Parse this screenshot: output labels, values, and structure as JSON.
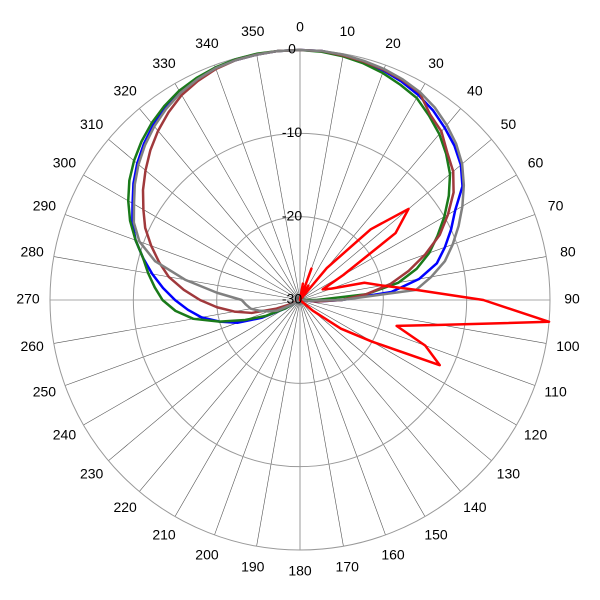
{
  "chart_data": {
    "type": "polar",
    "direction": "clockwise",
    "rlim": [
      -30,
      0
    ],
    "rticks": [
      -30,
      -20,
      -10,
      0
    ],
    "thetaticks": [
      0,
      10,
      20,
      30,
      40,
      50,
      60,
      70,
      80,
      90,
      100,
      110,
      120,
      130,
      140,
      150,
      160,
      170,
      180,
      190,
      200,
      210,
      220,
      230,
      240,
      250,
      260,
      270,
      280,
      290,
      300,
      310,
      320,
      330,
      340,
      350
    ],
    "theta": [
      0,
      5,
      10,
      15,
      20,
      25,
      30,
      35,
      40,
      45,
      50,
      55,
      60,
      65,
      70,
      75,
      80,
      85,
      90,
      95,
      100,
      105,
      110,
      115,
      120,
      125,
      130,
      135,
      140,
      145,
      150,
      155,
      160,
      165,
      170,
      175,
      180,
      185,
      190,
      195,
      200,
      205,
      210,
      215,
      220,
      225,
      230,
      235,
      240,
      245,
      250,
      255,
      260,
      265,
      270,
      275,
      280,
      285,
      290,
      295,
      300,
      305,
      310,
      315,
      320,
      325,
      330,
      335,
      340,
      345,
      350,
      355
    ],
    "grid": true,
    "series": [
      {
        "color": "#0000ff",
        "values": [
          0,
          0,
          -0.2,
          -0.4,
          -0.7,
          -1.1,
          -1.6,
          -2.2,
          -3,
          -3.8,
          -4.8,
          -6.2,
          -8.5,
          -10,
          -11.5,
          -13,
          -15.5,
          -19,
          -25,
          -28,
          -30,
          -30,
          -30,
          -30,
          -30,
          -30,
          -30,
          -30,
          -30,
          -30,
          -30,
          -30,
          -30,
          -30,
          -30,
          -30,
          -30,
          -30,
          -30,
          -30,
          -30,
          -30,
          -30,
          -30,
          -30,
          -30,
          -30,
          -30,
          -28,
          -25,
          -22,
          -20,
          -18,
          -16.5,
          -15,
          -13.5,
          -12,
          -10.5,
          -9,
          -7.8,
          -6.8,
          -5.6,
          -4.5,
          -3.5,
          -2.6,
          -1.8,
          -1.2,
          -0.7,
          -0.4,
          -0.2,
          -0.1,
          0
        ]
      },
      {
        "color": "#1a7a1a",
        "values": [
          0,
          -0.1,
          -0.3,
          -0.6,
          -1,
          -1.5,
          -2,
          -3,
          -4,
          -5.2,
          -6.5,
          -8.2,
          -10,
          -11.8,
          -13.5,
          -15.5,
          -18,
          -22,
          -28,
          -30,
          -30,
          -30,
          -30,
          -30,
          -30,
          -30,
          -30,
          -30,
          -30,
          -30,
          -30,
          -30,
          -30,
          -30,
          -30,
          -30,
          -30,
          -30,
          -30,
          -30,
          -30,
          -30,
          -30,
          -30,
          -30,
          -30,
          -30,
          -30,
          -28,
          -25.5,
          -23,
          -20,
          -17,
          -15,
          -13.5,
          -12.5,
          -11.5,
          -10.5,
          -9,
          -7.5,
          -6.2,
          -5,
          -4,
          -3.1,
          -2.3,
          -1.6,
          -1,
          -0.6,
          -0.3,
          -0.1,
          0,
          0
        ]
      },
      {
        "color": "#a0393c",
        "values": [
          0,
          0,
          -0.2,
          -0.4,
          -0.6,
          -0.9,
          -1.3,
          -2.8,
          -3.6,
          -5,
          -6,
          -7.5,
          -9.5,
          -11.5,
          -14,
          -16.5,
          -19,
          -22,
          -25,
          -28,
          -30,
          -30,
          -30,
          -30,
          -30,
          -30,
          -30,
          -30,
          -30,
          -30,
          -30,
          -30,
          -30,
          -30,
          -30,
          -30,
          -30,
          -30,
          -30,
          -30,
          -30,
          -30,
          -30,
          -30,
          -30,
          -30,
          -30,
          -30,
          -30,
          -29,
          -27,
          -24,
          -22,
          -20,
          -18,
          -16,
          -14,
          -12.5,
          -11,
          -9.5,
          -8.3,
          -7,
          -5.8,
          -4.6,
          -3.5,
          -2.5,
          -1.6,
          -1,
          -0.5,
          -0.2,
          -0.1,
          0
        ]
      },
      {
        "color": "#808080",
        "values": [
          0,
          0,
          -0.1,
          -0.3,
          -0.5,
          -0.8,
          -1.2,
          -1.8,
          -2.6,
          -3.5,
          -4.6,
          -6,
          -7.5,
          -9,
          -10.5,
          -12,
          -14,
          -16,
          -25,
          -29,
          -30,
          -30,
          -30,
          -30,
          -30,
          -30,
          -30,
          -30,
          -30,
          -30,
          -30,
          -30,
          -30,
          -30,
          -30,
          -30,
          -30,
          -30,
          -30,
          -30,
          -30,
          -30,
          -30,
          -30,
          -30,
          -30,
          -30,
          -30,
          -29,
          -27,
          -26,
          -25,
          -24,
          -23.5,
          -23,
          -20,
          -16,
          -12,
          -9.5,
          -8,
          -7,
          -5.8,
          -4.7,
          -3.7,
          -2.8,
          -2,
          -1.3,
          -0.8,
          -0.4,
          -0.2,
          -0.1,
          0
        ]
      },
      {
        "color": "#ff0000",
        "values": [
          -30,
          -30,
          -28,
          -30,
          -26,
          -30,
          -28,
          -30,
          -25,
          -18,
          -13,
          -16,
          -24,
          -27,
          -26,
          -22,
          -20,
          -16,
          -8,
          0,
          -12.8,
          -18,
          -14,
          -11.5,
          -20,
          -24,
          -28,
          -30,
          -30,
          -30,
          -30,
          -30,
          -30,
          -30,
          -30,
          -30,
          -30,
          -30,
          -30,
          -30,
          -30,
          -30,
          -30,
          -30,
          -30,
          -30,
          -30,
          -30,
          -30,
          -30,
          -30,
          -30,
          -30,
          -30,
          -30,
          -30,
          -30,
          -30,
          -30,
          -30,
          -30,
          -30,
          -30,
          -30,
          -30,
          -30,
          -30,
          -30,
          -30,
          -30,
          -30,
          -30
        ]
      }
    ]
  }
}
